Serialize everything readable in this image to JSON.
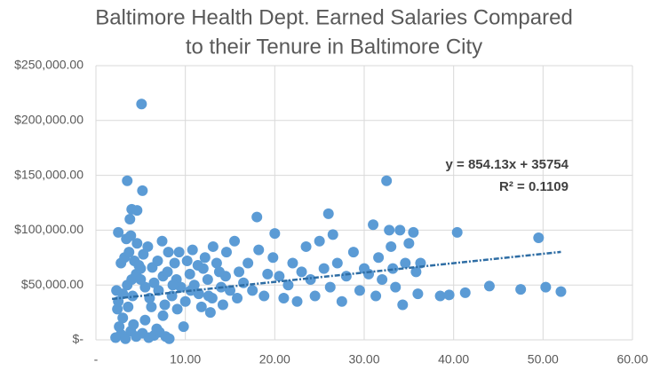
{
  "chart_data": {
    "type": "scatter",
    "title": [
      "Baltimore Health Dept. Earned Salaries Compared",
      "to their Tenure in Baltimore City"
    ],
    "color": "#5b9bd5",
    "x": [
      2.2,
      2.8,
      3.3,
      3.9,
      4.5,
      5.2,
      5.9,
      6.5,
      7.1,
      7.8,
      8.2,
      2.6,
      4.2,
      6.8,
      9.8,
      3.0,
      5.5,
      7.5,
      2.4,
      2.5,
      3.0,
      3.5,
      4.0,
      4.5,
      5.0,
      5.5,
      6.0,
      6.5,
      7.0,
      7.5,
      8.0,
      8.5,
      9.0,
      9.5,
      10.0,
      10.5,
      11.0,
      11.5,
      12.0,
      12.5,
      13.0,
      13.5,
      14.0,
      14.5,
      15.0,
      2.8,
      3.2,
      3.7,
      4.3,
      4.8,
      5.3,
      5.8,
      6.3,
      6.9,
      7.4,
      8.1,
      8.8,
      9.3,
      10.2,
      10.8,
      11.4,
      12.2,
      13.1,
      13.8,
      14.6,
      3.4,
      3.9,
      4.6,
      2.5,
      5.0,
      6.2,
      7.7,
      9.1,
      11.8,
      12.8,
      14.2,
      15.8,
      2.3,
      3.6,
      4.1,
      8.6,
      10.6,
      12.6,
      15.5,
      16.0,
      16.5,
      17.0,
      17.5,
      18.0,
      18.2,
      18.8,
      19.2,
      19.8,
      20.0,
      20.5,
      21.0,
      21.5,
      22.0,
      22.5,
      23.0,
      23.5,
      24.0,
      24.5,
      25.0,
      25.5,
      26.0,
      26.2,
      26.5,
      27.0,
      27.5,
      28.0,
      28.8,
      29.5,
      30.0,
      30.5,
      31.0,
      31.3,
      31.6,
      32.0,
      32.5,
      32.8,
      33.0,
      33.2,
      33.5,
      34.0,
      34.3,
      34.6,
      35.0,
      35.5,
      35.8,
      36.0,
      36.3,
      38.5,
      39.5,
      40.4,
      41.3,
      44.0,
      47.5,
      49.5,
      50.3,
      52.0,
      5.1,
      3.5,
      5.2,
      4.0,
      3.8,
      4.6
    ],
    "values": [
      2000,
      5000,
      1000,
      8000,
      3000,
      6000,
      2000,
      4000,
      7000,
      3000,
      1000,
      12000,
      14000,
      10000,
      12000,
      20000,
      18000,
      22000,
      28000,
      35000,
      42000,
      50000,
      55000,
      60000,
      65000,
      48000,
      38000,
      52000,
      45000,
      58000,
      62000,
      40000,
      55000,
      48000,
      35000,
      60000,
      50000,
      42000,
      65000,
      55000,
      38000,
      70000,
      48000,
      58000,
      45000,
      70000,
      75000,
      80000,
      72000,
      68000,
      78000,
      85000,
      66000,
      72000,
      90000,
      80000,
      70000,
      80000,
      72000,
      82000,
      68000,
      75000,
      85000,
      62000,
      80000,
      92000,
      95000,
      88000,
      98000,
      55000,
      30000,
      32000,
      28000,
      30000,
      25000,
      32000,
      38000,
      45000,
      30000,
      40000,
      50000,
      45000,
      40000,
      90000,
      62000,
      52000,
      70000,
      45000,
      112000,
      82000,
      40000,
      60000,
      75000,
      97000,
      58000,
      38000,
      50000,
      70000,
      35000,
      62000,
      85000,
      55000,
      40000,
      90000,
      65000,
      115000,
      48000,
      96000,
      70000,
      35000,
      58000,
      80000,
      45000,
      65000,
      60000,
      105000,
      40000,
      75000,
      55000,
      145000,
      100000,
      85000,
      65000,
      48000,
      100000,
      32000,
      70000,
      88000,
      98000,
      62000,
      42000,
      70000,
      40000,
      41000,
      98000,
      43000,
      49000,
      46000,
      93000,
      48000,
      44000,
      215000,
      145000,
      136000,
      119000,
      110000,
      118000
    ],
    "trendline": {
      "color": "#2e6da4",
      "x": [
        1.8,
        52
      ],
      "values": [
        37291,
        80169
      ]
    },
    "annotations": [
      "y = 854.13x + 35754",
      "R² = 0.1109"
    ],
    "xlim": [
      0,
      60
    ],
    "xticks": [
      {
        "value": 0,
        "label": "-"
      },
      {
        "value": 10,
        "label": "10.00"
      },
      {
        "value": 20,
        "label": "20.00"
      },
      {
        "value": 30,
        "label": "30.00"
      },
      {
        "value": 40,
        "label": "40.00"
      },
      {
        "value": 50,
        "label": "50.00"
      },
      {
        "value": 60,
        "label": "60.00"
      }
    ],
    "ylim": [
      0,
      250000
    ],
    "yticks": [
      {
        "value": 0,
        "label": "$-"
      },
      {
        "value": 50000,
        "label": "$50,000.00"
      },
      {
        "value": 100000,
        "label": "$100,000.00"
      },
      {
        "value": 150000,
        "label": "$150,000.00"
      },
      {
        "value": 200000,
        "label": "$200,000.00"
      },
      {
        "value": 250000,
        "label": "$250,000.00"
      }
    ],
    "grid": true
  }
}
